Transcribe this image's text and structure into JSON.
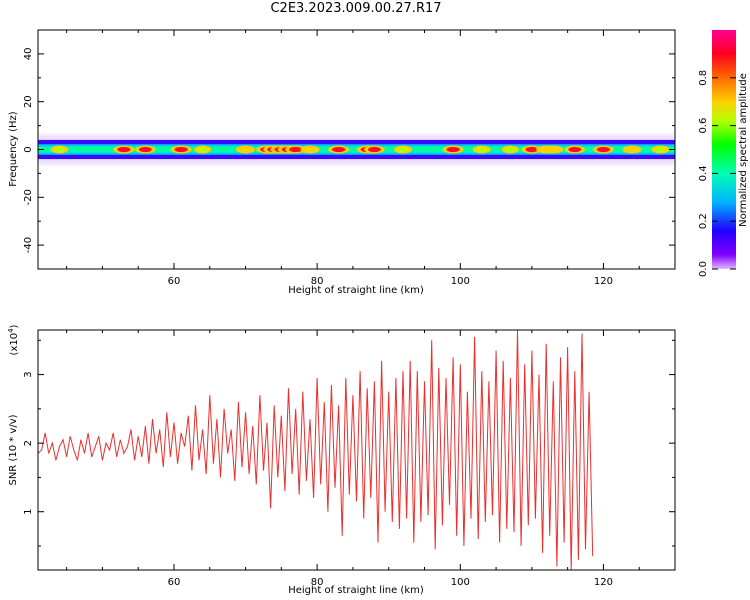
{
  "figure": {
    "title": "C2E3.2023.009.00.27.R17"
  },
  "colorbar": {
    "label": "Normalized spectral amplitude",
    "ticks": [
      "0.0",
      "0.2",
      "0.4",
      "0.6",
      "0.8"
    ],
    "range": [
      0,
      1
    ],
    "colormap": "gist_rainbow_r"
  },
  "chart_data": [
    {
      "type": "heatmap",
      "xlabel": "Height of straight line (km)",
      "ylabel": "Frequency (Hz)",
      "xlim": [
        41,
        130
      ],
      "ylim": [
        -50,
        50
      ],
      "xticks": [
        60,
        80,
        100,
        120
      ],
      "yticks": [
        -40,
        -20,
        0,
        20,
        40
      ],
      "ytick_labels": [
        "-40",
        "-20",
        "0",
        "20",
        "40"
      ],
      "band": {
        "center_frequency": 0,
        "half_width_hz": 4,
        "description_values": "signal concentrated near 0 Hz across all heights",
        "peak_x": [
          44,
          53,
          56,
          61,
          64,
          70,
          73,
          74,
          75,
          76,
          77,
          79,
          83,
          87,
          88,
          92,
          99,
          103,
          107,
          110,
          112,
          113,
          116,
          120,
          124,
          128
        ],
        "peak_amp": [
          0.55,
          0.9,
          0.85,
          0.9,
          0.5,
          0.7,
          0.95,
          1.0,
          1.0,
          0.95,
          0.9,
          0.7,
          0.9,
          0.9,
          0.85,
          0.6,
          0.9,
          0.6,
          0.5,
          0.85,
          0.8,
          0.8,
          0.85,
          0.9,
          0.7,
          0.6
        ]
      }
    },
    {
      "type": "line",
      "xlabel": "Height of straight line (km)",
      "ylabel": "SNR (10 * v/v)",
      "ylabel_scale": "(x10",
      "ylabel_scale_exp": "4",
      "ylabel_scale_close": ")",
      "xlim": [
        41,
        130
      ],
      "ylim": [
        0.15,
        3.65
      ],
      "xticks": [
        60,
        80,
        100,
        120
      ],
      "yticks": [
        1,
        2,
        3
      ],
      "ytick_labels": [
        "1",
        "2",
        "3"
      ],
      "series": [
        {
          "color": "#e8302f",
          "x_start": 41,
          "x_step": 0.5,
          "values": [
            1.85,
            1.9,
            2.15,
            1.85,
            2.0,
            1.75,
            1.95,
            2.05,
            1.8,
            2.1,
            1.9,
            1.75,
            2.05,
            1.85,
            2.15,
            1.8,
            1.95,
            2.1,
            1.75,
            2.0,
            1.9,
            2.15,
            1.8,
            2.05,
            1.85,
            1.95,
            2.2,
            1.75,
            2.1,
            1.8,
            2.25,
            1.7,
            2.35,
            1.85,
            2.2,
            1.65,
            2.45,
            1.8,
            2.3,
            1.7,
            2.15,
            1.95,
            2.4,
            1.6,
            2.55,
            1.75,
            2.2,
            1.55,
            2.7,
            1.7,
            2.35,
            1.5,
            2.5,
            1.85,
            2.2,
            1.45,
            2.6,
            1.65,
            2.45,
            1.55,
            2.25,
            1.4,
            2.7,
            1.6,
            2.3,
            1.05,
            2.55,
            1.5,
            2.4,
            1.3,
            2.8,
            1.55,
            2.5,
            1.25,
            2.75,
            1.45,
            2.35,
            1.2,
            2.95,
            1.4,
            2.6,
            1.0,
            2.85,
            1.35,
            2.55,
            0.65,
            2.95,
            1.25,
            2.7,
            1.15,
            3.05,
            0.9,
            2.8,
            1.2,
            2.9,
            0.55,
            3.2,
            1.0,
            2.75,
            0.85,
            2.95,
            0.75,
            3.05,
            0.9,
            3.2,
            0.55,
            3.05,
            0.85,
            2.9,
            0.95,
            3.5,
            0.45,
            3.1,
            0.8,
            2.95,
            1.1,
            3.25,
            0.65,
            3.15,
            0.5,
            2.75,
            0.9,
            3.55,
            0.6,
            3.05,
            0.85,
            2.9,
            0.95,
            3.35,
            0.55,
            3.2,
            0.75,
            2.95,
            0.7,
            3.65,
            0.5,
            3.15,
            0.8,
            3.35,
            0.9,
            3.0,
            0.4,
            3.45,
            0.65,
            2.9,
            0.2,
            3.25,
            0.55,
            3.4,
            0.15,
            3.05,
            0.3,
            3.6,
            0.45,
            2.75,
            0.35
          ]
        }
      ]
    }
  ]
}
